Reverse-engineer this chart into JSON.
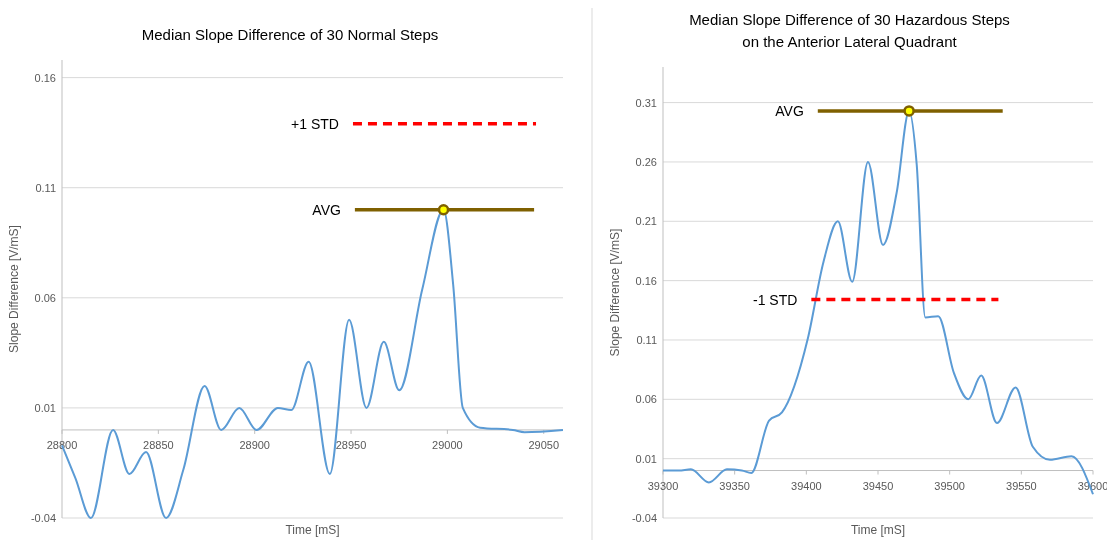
{
  "chart_data": [
    {
      "type": "line",
      "title": "Median Slope Difference of 30 Normal Steps",
      "xlabel": "Time [mS]",
      "ylabel": "Slope Difference [V/mS]",
      "xlim": [
        28800,
        29060
      ],
      "xticks": [
        28800,
        28850,
        28900,
        28950,
        29000,
        29050
      ],
      "ylim": [
        -0.04,
        0.168
      ],
      "yticks": [
        -0.04,
        0.01,
        0.06,
        0.11,
        0.16
      ],
      "grid": "y",
      "series": [
        {
          "color": "#5b9bd5",
          "marker": "none",
          "line_style": "solid",
          "x": [
            28800,
            28807,
            28815,
            28826.5,
            28835,
            28843.6,
            28854,
            28863,
            28874,
            28882.6,
            28892,
            28901,
            28912,
            28919,
            28928,
            28939,
            28949,
            28958,
            28967,
            28975,
            28987,
            28998,
            29003,
            29008,
            29017,
            29034,
            29040,
            29060
          ],
          "values": [
            -0.007,
            -0.022,
            -0.04,
            0.0,
            -0.02,
            -0.01,
            -0.04,
            -0.018,
            0.02,
            0.0,
            0.01,
            0.0,
            0.01,
            0.009,
            0.031,
            -0.02,
            0.05,
            0.01,
            0.04,
            0.018,
            0.064,
            0.1,
            0.066,
            0.01,
            0.001,
            0.0,
            -0.001,
            0.0
          ]
        },
        {
          "name": "+1 STD",
          "type": "line",
          "color": "#ff0000",
          "marker": "none",
          "line_style": "dashed",
          "x": [
            28951,
            29046
          ],
          "values": [
            0.139,
            0.139
          ]
        },
        {
          "name": "AVG",
          "type": "line",
          "color": "#7f6000",
          "marker": "none",
          "line_style": "solid",
          "x": [
            28952,
            29045
          ],
          "values": [
            0.1,
            0.1
          ]
        },
        {
          "type": "scatter",
          "color": "#7f6000",
          "marker": "circle",
          "x": [
            28998
          ],
          "values": [
            0.1
          ]
        }
      ]
    },
    {
      "type": "line",
      "title": "Median Slope Difference of 30 Hazardous Steps\non the Anterior Lateral Quadrant",
      "xlabel": "Time [mS]",
      "ylabel": "Slope Difference [V/mS]",
      "xlim": [
        39300,
        39600
      ],
      "xticks": [
        39300,
        39350,
        39400,
        39450,
        39500,
        39550,
        39600
      ],
      "ylim": [
        -0.04,
        0.34
      ],
      "yticks": [
        -0.04,
        0.01,
        0.06,
        0.11,
        0.16,
        0.21,
        0.26,
        0.31
      ],
      "grid": "y",
      "series": [
        {
          "color": "#5b9bd5",
          "marker": "none",
          "line_style": "solid",
          "x": [
            39300,
            39311,
            39319.5,
            39332,
            39344.6,
            39355,
            39361.6,
            39374,
            39383,
            39401,
            39412,
            39422,
            39432,
            39443,
            39453.5,
            39463,
            39471.7,
            39477,
            39483,
            39492,
            39503,
            39513,
            39522,
            39533,
            39546,
            39558,
            39570,
            39585,
            39600
          ],
          "values": [
            0.0,
            0.0,
            0.001,
            -0.01,
            0.001,
            0.0,
            -0.002,
            0.042,
            0.049,
            0.111,
            0.176,
            0.21,
            0.159,
            0.26,
            0.19,
            0.234,
            0.303,
            0.258,
            0.129,
            0.13,
            0.082,
            0.06,
            0.08,
            0.04,
            0.07,
            0.02,
            0.009,
            0.012,
            -0.02
          ]
        },
        {
          "name": "-1 STD",
          "type": "line",
          "color": "#ff0000",
          "marker": "none",
          "line_style": "dashed",
          "x": [
            39403.5,
            39534
          ],
          "values": [
            0.144,
            0.144
          ]
        },
        {
          "name": "AVG",
          "type": "line",
          "color": "#7f6000",
          "marker": "none",
          "line_style": "solid",
          "x": [
            39408,
            39537
          ],
          "values": [
            0.303,
            0.303
          ]
        },
        {
          "type": "scatter",
          "color": "#7f6000",
          "marker": "circle",
          "x": [
            39471.7
          ],
          "values": [
            0.303
          ]
        }
      ]
    }
  ]
}
